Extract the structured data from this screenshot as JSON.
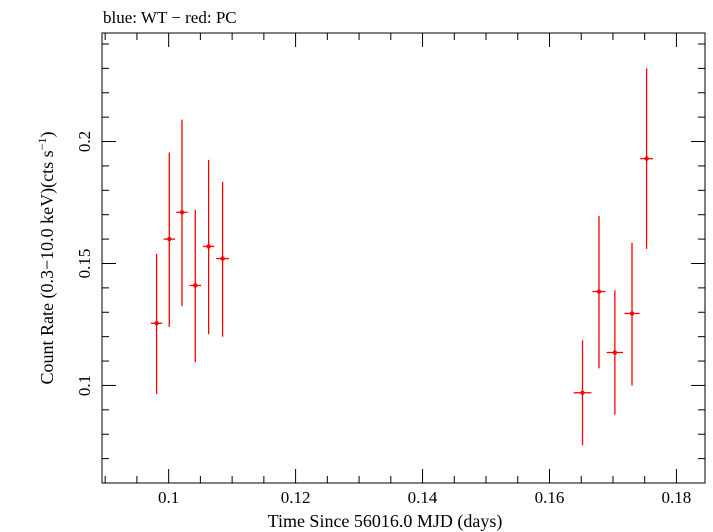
{
  "chart_data": {
    "type": "scatter",
    "title": "blue: WT − red: PC",
    "xlabel": "Time Since 56016.0 MJD (days)",
    "ylabel_main": "Count Rate (0.3−10.0 keV)(cts s",
    "ylabel_sup": "−1",
    "ylabel_close": ")",
    "xlim": [
      0.0895,
      0.1845
    ],
    "ylim": [
      0.06,
      0.2445
    ],
    "x_ticks": [
      0.1,
      0.12,
      0.14,
      0.16,
      0.18
    ],
    "x_tick_labels": [
      "0.1",
      "0.12",
      "0.14",
      "0.16",
      "0.18"
    ],
    "y_ticks": [
      0.1,
      0.15,
      0.2
    ],
    "y_tick_labels": [
      "0.1",
      "0.15",
      "0.2"
    ],
    "grid": false,
    "colors": {
      "pc": "#ff0000",
      "axes": "#000000"
    },
    "series": [
      {
        "color": "#ff0000",
        "points": [
          {
            "x": 0.0981,
            "y": 0.1255,
            "xerr": 0.0009,
            "ylo": 0.0965,
            "yhi": 0.154
          },
          {
            "x": 0.1001,
            "y": 0.16,
            "xerr": 0.0009,
            "ylo": 0.124,
            "yhi": 0.1955
          },
          {
            "x": 0.1021,
            "y": 0.171,
            "xerr": 0.0009,
            "ylo": 0.1325,
            "yhi": 0.209
          },
          {
            "x": 0.1042,
            "y": 0.141,
            "xerr": 0.0009,
            "ylo": 0.1095,
            "yhi": 0.172
          },
          {
            "x": 0.1063,
            "y": 0.157,
            "xerr": 0.0009,
            "ylo": 0.121,
            "yhi": 0.1925
          },
          {
            "x": 0.1085,
            "y": 0.152,
            "xerr": 0.001,
            "ylo": 0.12,
            "yhi": 0.1835
          },
          {
            "x": 0.1652,
            "y": 0.097,
            "xerr": 0.0014,
            "ylo": 0.0755,
            "yhi": 0.1185
          },
          {
            "x": 0.1678,
            "y": 0.1385,
            "xerr": 0.001,
            "ylo": 0.107,
            "yhi": 0.1695
          },
          {
            "x": 0.1703,
            "y": 0.1135,
            "xerr": 0.0013,
            "ylo": 0.088,
            "yhi": 0.139
          },
          {
            "x": 0.173,
            "y": 0.1295,
            "xerr": 0.0012,
            "ylo": 0.1,
            "yhi": 0.1585
          },
          {
            "x": 0.1753,
            "y": 0.193,
            "xerr": 0.001,
            "ylo": 0.156,
            "yhi": 0.23
          }
        ]
      }
    ]
  }
}
